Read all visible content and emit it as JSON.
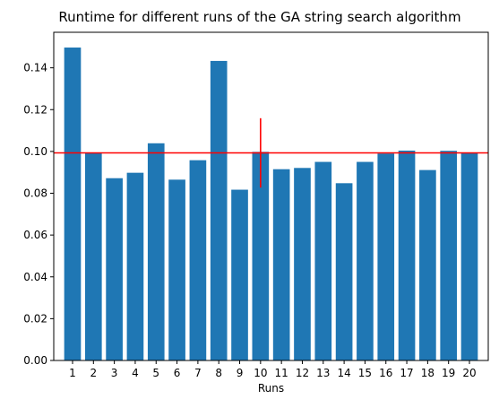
{
  "chart_data": {
    "type": "bar",
    "title": "Runtime for different runs of the GA string search algorithm",
    "xlabel": "Runs",
    "ylabel": "",
    "categories": [
      "1",
      "2",
      "3",
      "4",
      "5",
      "6",
      "7",
      "8",
      "9",
      "10",
      "11",
      "12",
      "13",
      "14",
      "15",
      "16",
      "17",
      "18",
      "19",
      "20"
    ],
    "values": [
      0.1497,
      0.0994,
      0.0872,
      0.0898,
      0.1039,
      0.0865,
      0.0958,
      0.1433,
      0.0817,
      0.0998,
      0.0915,
      0.0921,
      0.095,
      0.0848,
      0.095,
      0.099,
      0.1004,
      0.0911,
      0.1003,
      0.0993
    ],
    "ylim": [
      0,
      0.157
    ],
    "yticks": [
      "0.00",
      "0.02",
      "0.04",
      "0.06",
      "0.08",
      "0.10",
      "0.12",
      "0.14"
    ],
    "ytick_values": [
      0,
      0.02,
      0.04,
      0.06,
      0.08,
      0.1,
      0.12,
      0.14
    ],
    "mean_line": {
      "value": 0.0993,
      "color": "#ff0000"
    },
    "error_bar": {
      "category": "10",
      "center": 0.0993,
      "low": 0.0827,
      "high": 0.1159,
      "color": "#ff0000"
    },
    "bar_color": "#1f77b4",
    "grid": false,
    "legend": "none"
  }
}
